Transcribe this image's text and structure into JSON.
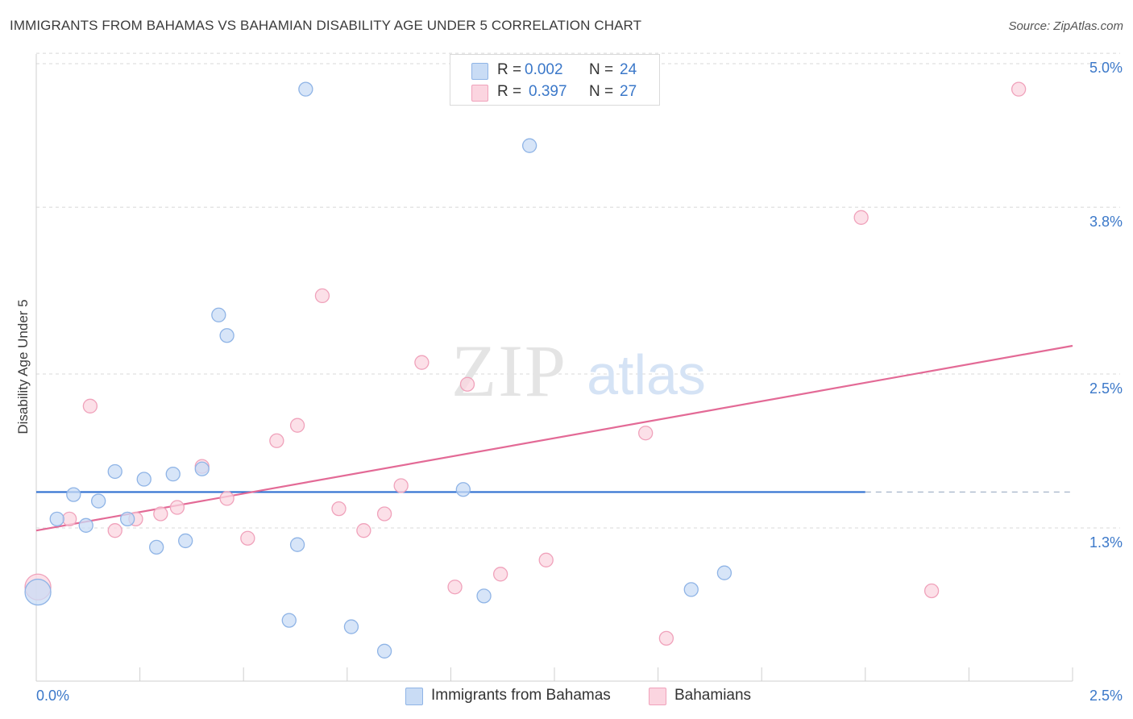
{
  "title": "IMMIGRANTS FROM BAHAMAS VS BAHAMIAN DISABILITY AGE UNDER 5 CORRELATION CHART",
  "source": "Source: ZipAtlas.com",
  "watermark": {
    "zip": "ZIP",
    "atlas": "atlas"
  },
  "legend_top": {
    "r_label": "R =",
    "n_label": "N =",
    "rows": [
      {
        "r": "0.002",
        "n": "24"
      },
      {
        "r": "0.397",
        "n": "27"
      }
    ]
  },
  "colors": {
    "blue_fill": "#c9dcf5",
    "blue_stroke": "#8fb4e6",
    "blue_line": "#2f6fd1",
    "pink_fill": "#fbd5e0",
    "pink_stroke": "#f0a2bb",
    "pink_line": "#e36a96",
    "axis_label": "#3b78c9",
    "grid": "#d8d8d8"
  },
  "chart_data": {
    "type": "scatter",
    "title": "IMMIGRANTS FROM BAHAMAS VS BAHAMIAN DISABILITY AGE UNDER 5 CORRELATION CHART",
    "xlabel": "",
    "ylabel": "Disability Age Under 5",
    "xlim": [
      0,
      2.5
    ],
    "ylim": [
      0,
      5.2
    ],
    "x_tick_labels": [
      "0.0%",
      "2.5%"
    ],
    "y_ticks": [
      1.3,
      2.5,
      3.8,
      5.0
    ],
    "y_tick_labels": [
      "1.3%",
      "2.5%",
      "3.8%",
      "5.0%"
    ],
    "grid": true,
    "legend_position": "bottom-center",
    "series": [
      {
        "name": "Immigrants from Bahamas",
        "color": "#8fb4e6",
        "r": 0.002,
        "n": 24,
        "trend": {
          "x": [
            0.0,
            2.0
          ],
          "y": [
            1.58,
            1.58
          ],
          "dashed_to": 2.5
        },
        "points": [
          {
            "x": 0.004,
            "y": 0.8,
            "big": true
          },
          {
            "x": 0.05,
            "y": 1.37
          },
          {
            "x": 0.09,
            "y": 1.56
          },
          {
            "x": 0.12,
            "y": 1.32
          },
          {
            "x": 0.15,
            "y": 1.51
          },
          {
            "x": 0.19,
            "y": 1.74
          },
          {
            "x": 0.22,
            "y": 1.37
          },
          {
            "x": 0.26,
            "y": 1.68
          },
          {
            "x": 0.29,
            "y": 1.15
          },
          {
            "x": 0.33,
            "y": 1.72
          },
          {
            "x": 0.36,
            "y": 1.2
          },
          {
            "x": 0.4,
            "y": 1.76
          },
          {
            "x": 0.44,
            "y": 2.96
          },
          {
            "x": 0.46,
            "y": 2.8
          },
          {
            "x": 0.61,
            "y": 0.58
          },
          {
            "x": 0.63,
            "y": 1.17
          },
          {
            "x": 0.65,
            "y": 4.72
          },
          {
            "x": 0.76,
            "y": 0.53
          },
          {
            "x": 0.84,
            "y": 0.34
          },
          {
            "x": 1.03,
            "y": 1.6
          },
          {
            "x": 1.08,
            "y": 0.77
          },
          {
            "x": 1.19,
            "y": 4.28
          },
          {
            "x": 1.58,
            "y": 0.82
          },
          {
            "x": 1.66,
            "y": 0.95
          }
        ]
      },
      {
        "name": "Bahamians",
        "color": "#f0a2bb",
        "r": 0.397,
        "n": 27,
        "trend": {
          "x": [
            0.0,
            2.5
          ],
          "y": [
            1.28,
            2.72
          ]
        },
        "points": [
          {
            "x": 0.004,
            "y": 0.84,
            "big": true
          },
          {
            "x": 0.08,
            "y": 1.37
          },
          {
            "x": 0.13,
            "y": 2.25
          },
          {
            "x": 0.19,
            "y": 1.28
          },
          {
            "x": 0.24,
            "y": 1.37
          },
          {
            "x": 0.3,
            "y": 1.41
          },
          {
            "x": 0.34,
            "y": 1.46
          },
          {
            "x": 0.4,
            "y": 1.78
          },
          {
            "x": 0.46,
            "y": 1.53
          },
          {
            "x": 0.51,
            "y": 1.22
          },
          {
            "x": 0.58,
            "y": 1.98
          },
          {
            "x": 0.63,
            "y": 2.1
          },
          {
            "x": 0.69,
            "y": 3.11
          },
          {
            "x": 0.73,
            "y": 1.45
          },
          {
            "x": 0.79,
            "y": 1.28
          },
          {
            "x": 0.84,
            "y": 1.41
          },
          {
            "x": 0.88,
            "y": 1.63
          },
          {
            "x": 0.93,
            "y": 2.59
          },
          {
            "x": 1.01,
            "y": 0.84
          },
          {
            "x": 1.04,
            "y": 2.42
          },
          {
            "x": 1.12,
            "y": 0.94
          },
          {
            "x": 1.23,
            "y": 1.05
          },
          {
            "x": 1.47,
            "y": 2.04
          },
          {
            "x": 1.52,
            "y": 0.44
          },
          {
            "x": 1.99,
            "y": 3.72
          },
          {
            "x": 2.16,
            "y": 0.81
          },
          {
            "x": 2.37,
            "y": 4.72
          }
        ]
      }
    ]
  }
}
